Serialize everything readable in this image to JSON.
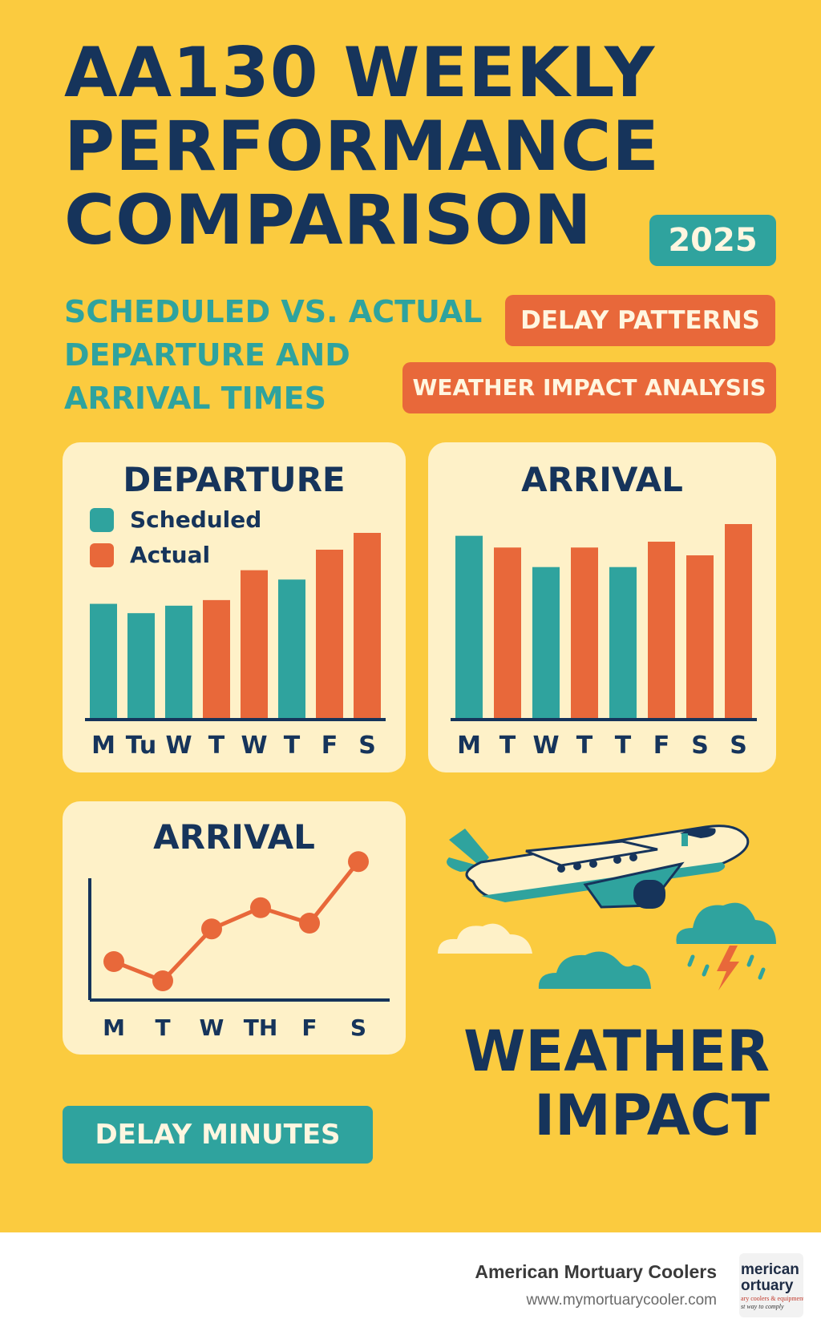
{
  "title": {
    "line1": "AA130 WEEKLY",
    "line2": "PERFORMANCE",
    "line3": "COMPARISON"
  },
  "badges": {
    "year": "2025",
    "delay_patterns": "DELAY PATTERNS",
    "weather_analysis": "WEATHER IMPACT ANALYSIS"
  },
  "subtitle": {
    "line1": "SCHEDULED VS. ACTUAL",
    "line2": "DEPARTURE AND",
    "line3": "ARRIVAL TIMES"
  },
  "colors": {
    "teal": "#2FA39E",
    "orange": "#E8683A",
    "navy": "#16345B",
    "panel": "#FEF1C8",
    "background": "#FBCB3F"
  },
  "panels": {
    "departure_title": "DEPARTURE",
    "arrival_bar_title": "ARRIVAL",
    "arrival_line_title": "ARRIVAL"
  },
  "weather": {
    "line1": "WEATHER",
    "line2": "IMPACT"
  },
  "delay_minutes_label": "DELAY MINUTES",
  "icons": [
    "airplane-icon",
    "cloud-icon",
    "storm-cloud-icon",
    "lightning-icon"
  ],
  "footer": {
    "name": "American Mortuary Coolers",
    "url": "www.mymortuarycooler.com",
    "logo_line1": "merican",
    "logo_line2": "ortuary",
    "logo_line3": "ary coolers & equipment",
    "logo_line4": "st way to comply"
  },
  "chart_data": [
    {
      "type": "bar",
      "title": "DEPARTURE",
      "legend": [
        "Scheduled",
        "Actual"
      ],
      "legend_position": "top-left",
      "categories": [
        "M",
        "Tu",
        "W",
        "T",
        "W",
        "T",
        "F",
        "S"
      ],
      "series_by_bar": [
        "Scheduled",
        "Scheduled",
        "Scheduled",
        "Actual",
        "Actual",
        "Scheduled",
        "Actual",
        "Actual"
      ],
      "values": [
        62,
        57,
        61,
        64,
        80,
        75,
        91,
        100
      ],
      "ylim": [
        0,
        100
      ],
      "grid": false
    },
    {
      "type": "bar",
      "title": "ARRIVAL",
      "categories": [
        "M",
        "T",
        "W",
        "T",
        "T",
        "F",
        "S",
        "S"
      ],
      "series_by_bar": [
        "Scheduled",
        "Actual",
        "Scheduled",
        "Actual",
        "Scheduled",
        "Actual",
        "Actual",
        "Actual"
      ],
      "values": [
        94,
        88,
        78,
        88,
        78,
        91,
        84,
        100
      ],
      "ylim": [
        0,
        100
      ],
      "grid": false
    },
    {
      "type": "line",
      "title": "ARRIVAL",
      "categories": [
        "M",
        "T",
        "W",
        "TH",
        "F",
        "S"
      ],
      "values": [
        20,
        10,
        37,
        48,
        40,
        72
      ],
      "ylim": [
        0,
        100
      ],
      "grid": false
    }
  ]
}
